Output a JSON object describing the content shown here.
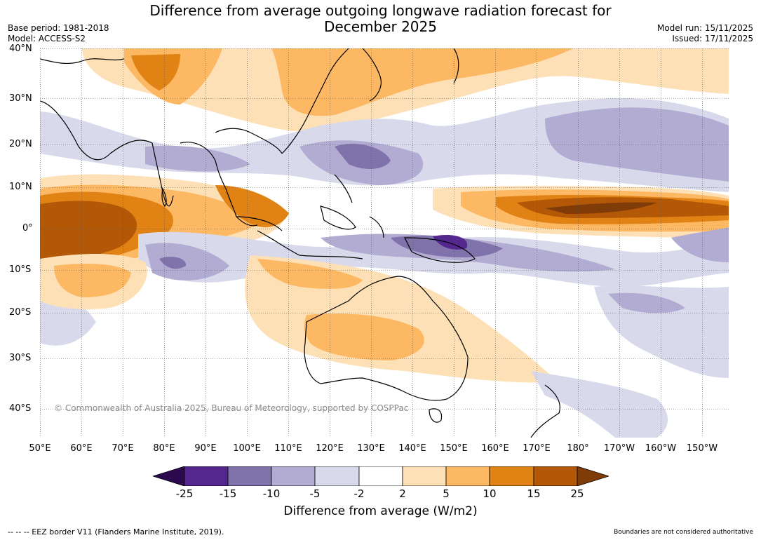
{
  "header": {
    "title_line1": "Difference from average outgoing longwave radiation forecast for",
    "title_line2": "December 2025",
    "base_period": "Base period: 1981-2018",
    "model": "Model: ACCESS-S2",
    "model_run": "Model run: 15/11/2025",
    "issued": "Issued: 17/11/2025"
  },
  "map": {
    "lat_labels": [
      "40°N",
      "30°N",
      "20°N",
      "10°N",
      "0°",
      "10°S",
      "20°S",
      "30°S",
      "40°S"
    ],
    "lon_labels": [
      "50°E",
      "60°E",
      "70°E",
      "80°E",
      "90°E",
      "100°E",
      "110°E",
      "120°E",
      "130°E",
      "140°E",
      "150°E",
      "160°E",
      "170°E",
      "180°",
      "170°W",
      "160°W",
      "150°W"
    ],
    "copyright": "© Commonwealth of Australia 2025, Bureau of Meteorology, supported by COSPPac"
  },
  "colorbar": {
    "ticks": [
      "-25",
      "-15",
      "-10",
      "-5",
      "-2",
      "2",
      "5",
      "10",
      "15",
      "25"
    ],
    "colors": [
      "#2d0a4e",
      "#54278f",
      "#8073ac",
      "#b2abd2",
      "#d8daeb",
      "#ffffff",
      "#fee0b6",
      "#fdb863",
      "#e08214",
      "#b35806",
      "#7f3b08"
    ],
    "label": "Difference from average (W/m2)"
  },
  "footer": {
    "eez": "--  --  -- EEZ border V11 (Flanders Marine Institute, 2019).",
    "boundaries": "Boundaries are not considered authoritative"
  }
}
